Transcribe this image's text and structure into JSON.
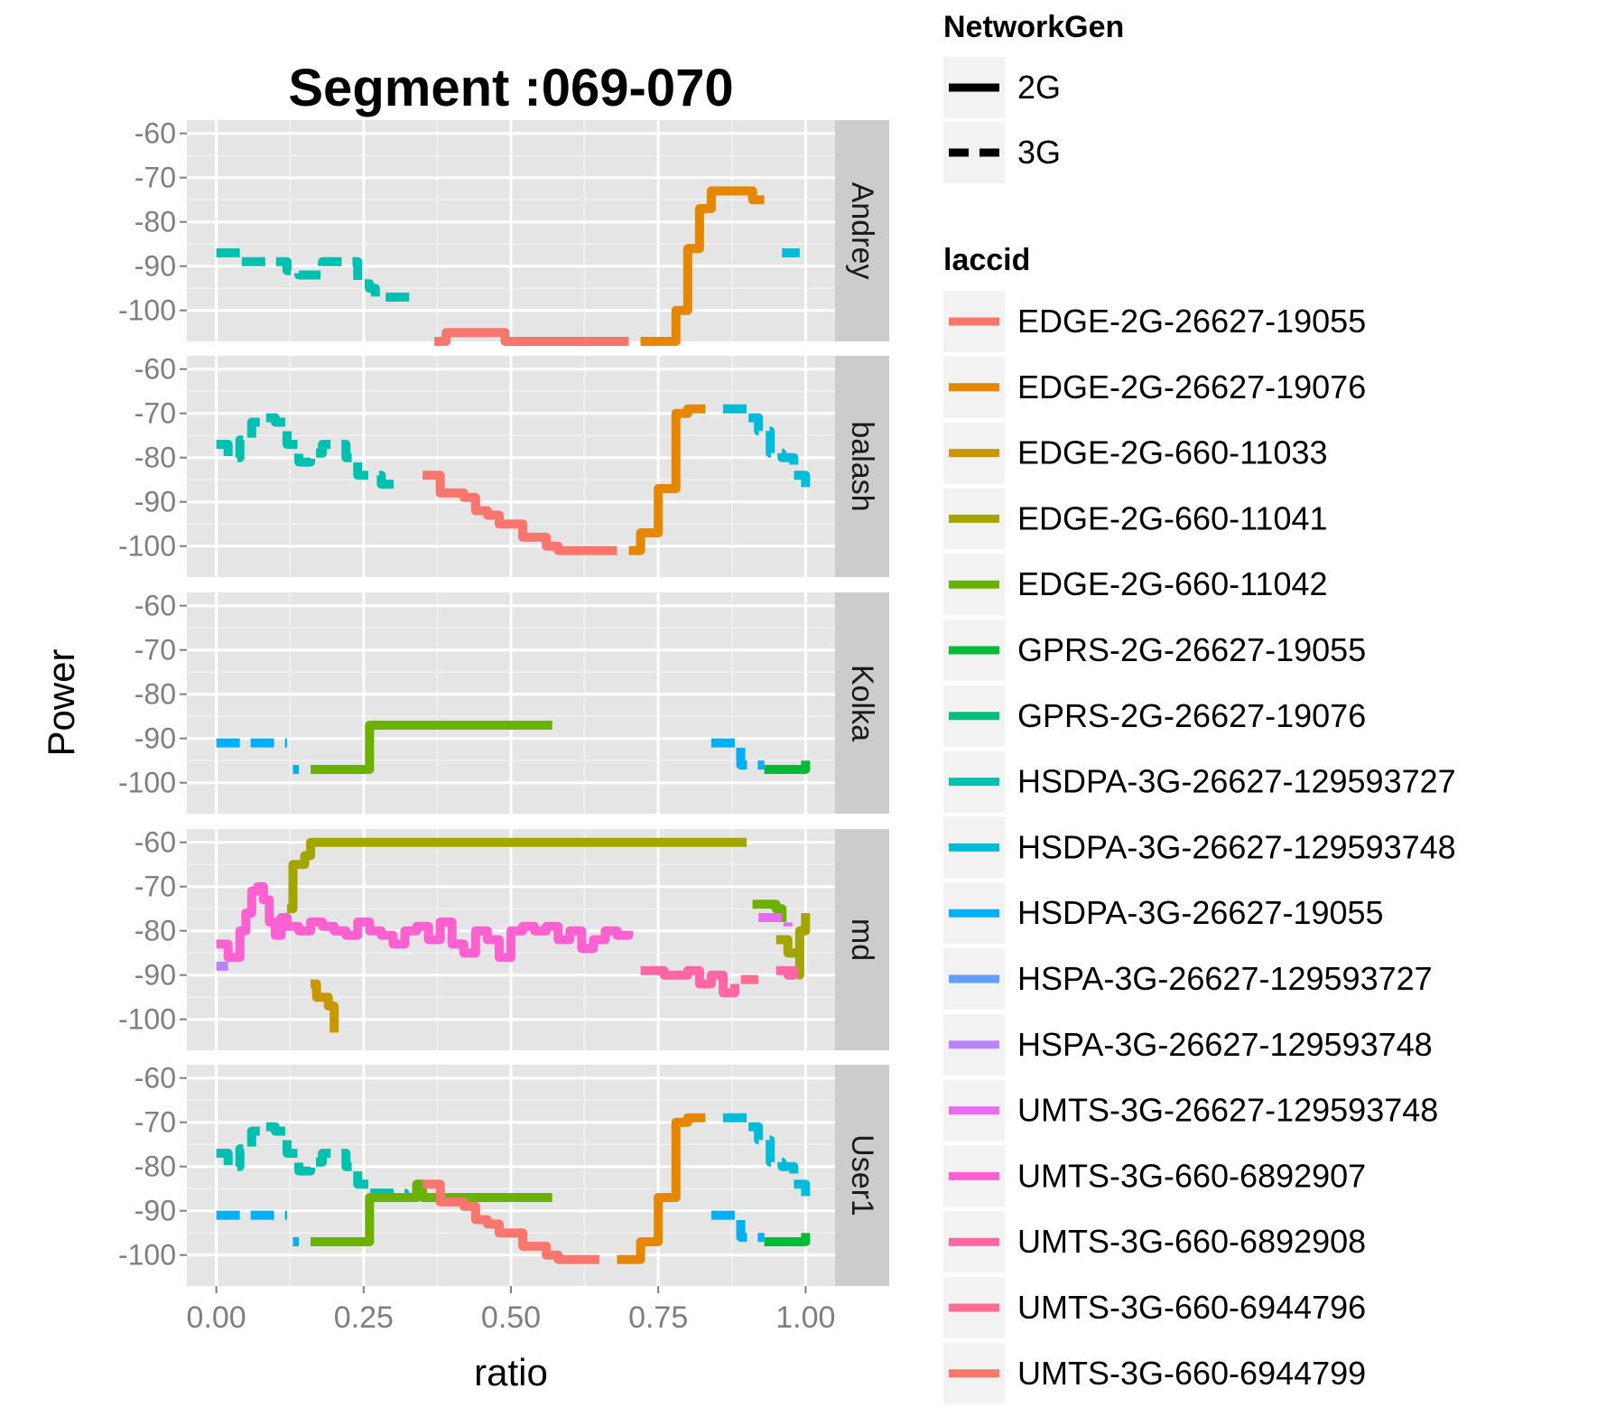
{
  "chart_data": {
    "type": "line",
    "title": "Segment :069-070",
    "xlabel": "ratio",
    "ylabel": "Power",
    "xlim": [
      -0.05,
      1.05
    ],
    "ylim": [
      -107,
      -57
    ],
    "x_ticks": [
      0,
      0.25,
      0.5,
      0.75,
      1
    ],
    "x_tick_labels": [
      "0.00",
      "0.25",
      "0.50",
      "0.75",
      "1.00"
    ],
    "y_ticks": [
      -60,
      -70,
      -80,
      -90,
      -100
    ],
    "y_tick_labels": [
      "-60",
      "-70",
      "-80",
      "-90",
      "-100"
    ],
    "grid": true,
    "facet_by": "user",
    "facets": [
      "Andrey",
      "balash",
      "Kolka",
      "md",
      "User1"
    ],
    "linetype_legend": {
      "title": "NetworkGen",
      "entries": [
        {
          "label": "2G",
          "style": "solid"
        },
        {
          "label": "3G",
          "style": "dashed"
        }
      ]
    },
    "color_legend": {
      "title": "laccid",
      "entries": [
        {
          "label": "EDGE-2G-26627-19055",
          "color": "#F8766D",
          "gen": "2G"
        },
        {
          "label": "EDGE-2G-26627-19076",
          "color": "#E58700",
          "gen": "2G"
        },
        {
          "label": "EDGE-2G-660-11033",
          "color": "#C99800",
          "gen": "2G"
        },
        {
          "label": "EDGE-2G-660-11041",
          "color": "#A3A500",
          "gen": "2G"
        },
        {
          "label": "EDGE-2G-660-11042",
          "color": "#6BB100",
          "gen": "2G"
        },
        {
          "label": "GPRS-2G-26627-19055",
          "color": "#00BA38",
          "gen": "2G"
        },
        {
          "label": "GPRS-2G-26627-19076",
          "color": "#00BF7D",
          "gen": "2G"
        },
        {
          "label": "HSDPA-3G-26627-129593727",
          "color": "#00C0AF",
          "gen": "3G"
        },
        {
          "label": "HSDPA-3G-26627-129593748",
          "color": "#00BCD8",
          "gen": "3G"
        },
        {
          "label": "HSDPA-3G-26627-19055",
          "color": "#00B0F6",
          "gen": "3G"
        },
        {
          "label": "HSPA-3G-26627-129593727",
          "color": "#619CFF",
          "gen": "3G"
        },
        {
          "label": "HSPA-3G-26627-129593748",
          "color": "#B983FF",
          "gen": "3G"
        },
        {
          "label": "UMTS-3G-26627-129593748",
          "color": "#E76BF3",
          "gen": "3G"
        },
        {
          "label": "UMTS-3G-660-6892907",
          "color": "#FD61D1",
          "gen": "3G"
        },
        {
          "label": "UMTS-3G-660-6892908",
          "color": "#FF67A4",
          "gen": "3G"
        },
        {
          "label": "UMTS-3G-660-6944796",
          "color": "#FF6C91",
          "gen": "3G"
        },
        {
          "label": "UMTS-3G-660-6944799",
          "color": "#F8766D",
          "gen": "3G"
        }
      ]
    },
    "series": [
      {
        "facet": "Andrey",
        "color": "#00C0AF",
        "dashed": true,
        "points": [
          [
            0.0,
            -87
          ],
          [
            0.03,
            -87
          ],
          [
            0.04,
            -89
          ],
          [
            0.07,
            -89
          ],
          [
            0.12,
            -91
          ],
          [
            0.14,
            -92
          ],
          [
            0.18,
            -89
          ],
          [
            0.22,
            -89
          ],
          [
            0.24,
            -94
          ],
          [
            0.26,
            -95
          ],
          [
            0.27,
            -97
          ],
          [
            0.33,
            -97
          ]
        ]
      },
      {
        "facet": "Andrey",
        "color": "#F8766D",
        "dashed": false,
        "points": [
          [
            0.37,
            -107
          ],
          [
            0.39,
            -105
          ],
          [
            0.45,
            -105
          ],
          [
            0.49,
            -107
          ],
          [
            0.7,
            -107
          ]
        ]
      },
      {
        "facet": "Andrey",
        "color": "#E58700",
        "dashed": false,
        "points": [
          [
            0.72,
            -107
          ],
          [
            0.76,
            -107
          ],
          [
            0.78,
            -100
          ],
          [
            0.8,
            -86
          ],
          [
            0.82,
            -77
          ],
          [
            0.84,
            -73
          ],
          [
            0.9,
            -73
          ],
          [
            0.91,
            -75
          ],
          [
            0.93,
            -75
          ]
        ]
      },
      {
        "facet": "Andrey",
        "color": "#00BCD8",
        "dashed": true,
        "points": [
          [
            0.96,
            -87
          ],
          [
            0.99,
            -87
          ]
        ]
      },
      {
        "facet": "balash",
        "color": "#00C0AF",
        "dashed": true,
        "points": [
          [
            0.0,
            -77
          ],
          [
            0.02,
            -80
          ],
          [
            0.04,
            -76
          ],
          [
            0.06,
            -72
          ],
          [
            0.08,
            -71
          ],
          [
            0.1,
            -72
          ],
          [
            0.12,
            -77
          ],
          [
            0.14,
            -81
          ],
          [
            0.16,
            -79
          ],
          [
            0.18,
            -77
          ],
          [
            0.22,
            -80
          ],
          [
            0.24,
            -84
          ],
          [
            0.26,
            -84
          ],
          [
            0.28,
            -86
          ],
          [
            0.31,
            -86
          ]
        ]
      },
      {
        "facet": "balash",
        "color": "#F8766D",
        "dashed": false,
        "points": [
          [
            0.35,
            -84
          ],
          [
            0.38,
            -88
          ],
          [
            0.42,
            -89
          ],
          [
            0.44,
            -92
          ],
          [
            0.46,
            -93
          ],
          [
            0.48,
            -95
          ],
          [
            0.52,
            -98
          ],
          [
            0.56,
            -100
          ],
          [
            0.58,
            -101
          ],
          [
            0.68,
            -101
          ]
        ]
      },
      {
        "facet": "balash",
        "color": "#E58700",
        "dashed": false,
        "points": [
          [
            0.7,
            -101
          ],
          [
            0.72,
            -97
          ],
          [
            0.74,
            -97
          ],
          [
            0.75,
            -87
          ],
          [
            0.77,
            -87
          ],
          [
            0.78,
            -70
          ],
          [
            0.8,
            -69
          ],
          [
            0.83,
            -69
          ]
        ]
      },
      {
        "facet": "balash",
        "color": "#00BCD8",
        "dashed": true,
        "points": [
          [
            0.86,
            -69
          ],
          [
            0.88,
            -69
          ],
          [
            0.9,
            -71
          ],
          [
            0.92,
            -74
          ],
          [
            0.94,
            -79
          ],
          [
            0.96,
            -80
          ],
          [
            0.98,
            -84
          ],
          [
            1.0,
            -87
          ]
        ]
      },
      {
        "facet": "Kolka",
        "color": "#00B0F6",
        "dashed": true,
        "points": [
          [
            0.0,
            -91
          ],
          [
            0.12,
            -91
          ]
        ]
      },
      {
        "facet": "Kolka",
        "color": "#00B0F6",
        "dashed": true,
        "points": [
          [
            0.13,
            -97
          ],
          [
            0.14,
            -97
          ]
        ]
      },
      {
        "facet": "Kolka",
        "color": "#6BB100",
        "dashed": false,
        "points": [
          [
            0.16,
            -97
          ],
          [
            0.24,
            -97
          ],
          [
            0.26,
            -87
          ],
          [
            0.57,
            -87
          ]
        ]
      },
      {
        "facet": "Kolka",
        "color": "#00B0F6",
        "dashed": true,
        "points": [
          [
            0.84,
            -91
          ],
          [
            0.87,
            -91
          ],
          [
            0.89,
            -96
          ],
          [
            0.93,
            -96
          ]
        ]
      },
      {
        "facet": "Kolka",
        "color": "#00BA38",
        "dashed": false,
        "points": [
          [
            0.93,
            -97
          ],
          [
            0.99,
            -97
          ],
          [
            1.0,
            -95
          ]
        ]
      },
      {
        "facet": "md",
        "color": "#A3A500",
        "dashed": false,
        "points": [
          [
            0.12,
            -75
          ],
          [
            0.13,
            -65
          ],
          [
            0.15,
            -63
          ],
          [
            0.16,
            -60
          ],
          [
            0.9,
            -60
          ]
        ]
      },
      {
        "facet": "md",
        "color": "#C99800",
        "dashed": false,
        "points": [
          [
            0.16,
            -92
          ],
          [
            0.17,
            -95
          ],
          [
            0.19,
            -97
          ],
          [
            0.2,
            -103
          ]
        ]
      },
      {
        "facet": "md",
        "color": "#B983FF",
        "dashed": true,
        "points": [
          [
            0.0,
            -88
          ],
          [
            0.02,
            -88
          ]
        ]
      },
      {
        "facet": "md",
        "color": "#FD61D1",
        "dashed": false,
        "points": [
          [
            0.0,
            -83
          ],
          [
            0.02,
            -86
          ],
          [
            0.04,
            -80
          ],
          [
            0.05,
            -76
          ],
          [
            0.06,
            -71
          ],
          [
            0.07,
            -70
          ],
          [
            0.08,
            -73
          ],
          [
            0.09,
            -78
          ],
          [
            0.1,
            -81
          ],
          [
            0.11,
            -77
          ],
          [
            0.12,
            -79
          ],
          [
            0.14,
            -80
          ],
          [
            0.16,
            -78
          ],
          [
            0.18,
            -79
          ],
          [
            0.2,
            -80
          ],
          [
            0.22,
            -81
          ],
          [
            0.24,
            -78
          ],
          [
            0.26,
            -80
          ],
          [
            0.28,
            -81
          ],
          [
            0.3,
            -83
          ],
          [
            0.32,
            -80
          ],
          [
            0.34,
            -79
          ],
          [
            0.36,
            -82
          ],
          [
            0.38,
            -78
          ],
          [
            0.4,
            -83
          ],
          [
            0.42,
            -85
          ],
          [
            0.44,
            -80
          ],
          [
            0.46,
            -82
          ],
          [
            0.48,
            -86
          ],
          [
            0.5,
            -80
          ],
          [
            0.52,
            -79
          ],
          [
            0.54,
            -80
          ],
          [
            0.56,
            -79
          ],
          [
            0.58,
            -82
          ],
          [
            0.6,
            -80
          ],
          [
            0.62,
            -84
          ],
          [
            0.64,
            -82
          ],
          [
            0.66,
            -80
          ],
          [
            0.68,
            -81
          ],
          [
            0.7,
            -80
          ]
        ]
      },
      {
        "facet": "md",
        "color": "#FF67A4",
        "dashed": false,
        "points": [
          [
            0.72,
            -89
          ],
          [
            0.76,
            -90
          ],
          [
            0.8,
            -89
          ],
          [
            0.82,
            -92
          ],
          [
            0.84,
            -90
          ],
          [
            0.86,
            -94
          ],
          [
            0.88,
            -92
          ]
        ]
      },
      {
        "facet": "md",
        "color": "#FF6C91",
        "dashed": false,
        "points": [
          [
            0.89,
            -91
          ],
          [
            0.92,
            -91
          ]
        ]
      },
      {
        "facet": "md",
        "color": "#6BB100",
        "dashed": false,
        "points": [
          [
            0.91,
            -74
          ],
          [
            0.93,
            -74
          ],
          [
            0.95,
            -75
          ],
          [
            0.96,
            -78
          ]
        ]
      },
      {
        "facet": "md",
        "color": "#A3A500",
        "dashed": false,
        "points": [
          [
            0.95,
            -82
          ],
          [
            0.97,
            -85
          ],
          [
            0.99,
            -90
          ],
          [
            0.99,
            -80
          ],
          [
            1.0,
            -76
          ]
        ]
      },
      {
        "facet": "md",
        "color": "#E76BF3",
        "dashed": true,
        "points": [
          [
            0.92,
            -77
          ],
          [
            0.95,
            -77
          ],
          [
            0.97,
            -79
          ]
        ]
      },
      {
        "facet": "md",
        "color": "#FF67A4",
        "dashed": false,
        "points": [
          [
            0.95,
            -89
          ],
          [
            0.97,
            -90
          ],
          [
            0.98,
            -88
          ]
        ]
      },
      {
        "facet": "User1",
        "color": "#00C0AF",
        "dashed": true,
        "points": [
          [
            0.0,
            -77
          ],
          [
            0.02,
            -80
          ],
          [
            0.04,
            -76
          ],
          [
            0.06,
            -72
          ],
          [
            0.08,
            -71
          ],
          [
            0.1,
            -72
          ],
          [
            0.12,
            -77
          ],
          [
            0.14,
            -81
          ],
          [
            0.16,
            -79
          ],
          [
            0.18,
            -77
          ],
          [
            0.22,
            -80
          ],
          [
            0.24,
            -84
          ],
          [
            0.26,
            -86
          ],
          [
            0.28,
            -86
          ],
          [
            0.3,
            -86
          ],
          [
            0.32,
            -87
          ]
        ]
      },
      {
        "facet": "User1",
        "color": "#00B0F6",
        "dashed": true,
        "points": [
          [
            0.0,
            -91
          ],
          [
            0.12,
            -91
          ]
        ]
      },
      {
        "facet": "User1",
        "color": "#00B0F6",
        "dashed": true,
        "points": [
          [
            0.13,
            -97
          ],
          [
            0.14,
            -97
          ]
        ]
      },
      {
        "facet": "User1",
        "color": "#6BB100",
        "dashed": false,
        "points": [
          [
            0.16,
            -97
          ],
          [
            0.24,
            -97
          ],
          [
            0.26,
            -87
          ],
          [
            0.33,
            -87
          ],
          [
            0.34,
            -84
          ],
          [
            0.35,
            -87
          ],
          [
            0.57,
            -87
          ]
        ]
      },
      {
        "facet": "User1",
        "color": "#F8766D",
        "dashed": false,
        "points": [
          [
            0.35,
            -84
          ],
          [
            0.38,
            -88
          ],
          [
            0.42,
            -89
          ],
          [
            0.44,
            -92
          ],
          [
            0.46,
            -93
          ],
          [
            0.48,
            -95
          ],
          [
            0.52,
            -98
          ],
          [
            0.56,
            -100
          ],
          [
            0.58,
            -101
          ],
          [
            0.65,
            -101
          ]
        ]
      },
      {
        "facet": "User1",
        "color": "#E58700",
        "dashed": false,
        "points": [
          [
            0.68,
            -101
          ],
          [
            0.7,
            -101
          ],
          [
            0.72,
            -97
          ],
          [
            0.74,
            -97
          ],
          [
            0.75,
            -87
          ],
          [
            0.77,
            -87
          ],
          [
            0.78,
            -70
          ],
          [
            0.8,
            -69
          ],
          [
            0.83,
            -69
          ]
        ]
      },
      {
        "facet": "User1",
        "color": "#00BCD8",
        "dashed": true,
        "points": [
          [
            0.86,
            -69
          ],
          [
            0.88,
            -69
          ],
          [
            0.9,
            -71
          ],
          [
            0.92,
            -74
          ],
          [
            0.94,
            -79
          ],
          [
            0.96,
            -80
          ],
          [
            0.98,
            -84
          ],
          [
            1.0,
            -87
          ]
        ]
      },
      {
        "facet": "User1",
        "color": "#00B0F6",
        "dashed": true,
        "points": [
          [
            0.84,
            -91
          ],
          [
            0.87,
            -91
          ],
          [
            0.89,
            -96
          ],
          [
            0.93,
            -96
          ]
        ]
      },
      {
        "facet": "User1",
        "color": "#00BA38",
        "dashed": false,
        "points": [
          [
            0.93,
            -97
          ],
          [
            0.99,
            -97
          ],
          [
            1.0,
            -95
          ]
        ]
      }
    ]
  }
}
